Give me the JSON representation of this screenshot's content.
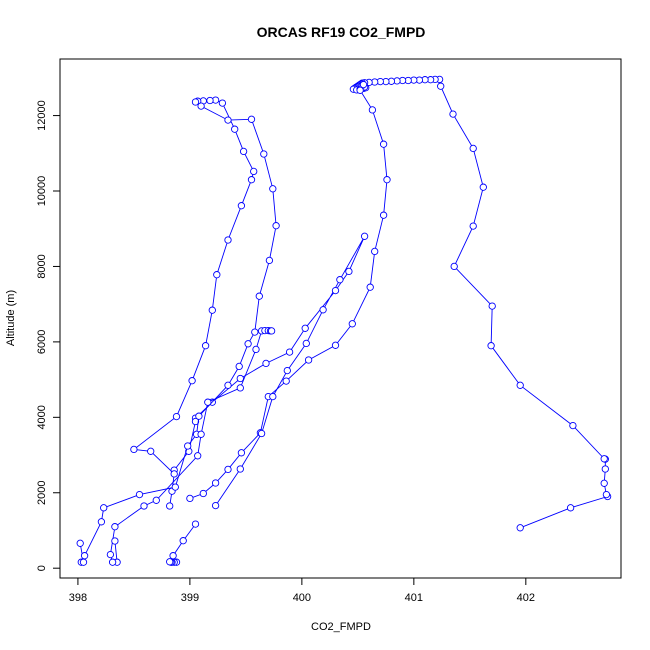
{
  "chart_data": {
    "type": "line",
    "title": "ORCAS RF19 CO2_FMPD",
    "xlabel": "CO2_FMPD",
    "ylabel": "Altitude (m)",
    "xlim": [
      397.84,
      402.85
    ],
    "ylim": [
      -260,
      13500
    ],
    "xticks": [
      398,
      399,
      400,
      401,
      402
    ],
    "yticks": [
      0,
      2000,
      4000,
      6000,
      8000,
      10000,
      12000
    ],
    "grid": false,
    "marker": "open-circle",
    "color": "#0000ff",
    "series": [
      {
        "points": [
          [
            401.95,
            1070
          ],
          [
            402.4,
            1600
          ],
          [
            402.73,
            1900
          ],
          [
            402.72,
            1950
          ],
          [
            402.7,
            2250
          ],
          [
            402.71,
            2630
          ],
          [
            402.71,
            2890
          ],
          [
            402.7,
            2900
          ],
          [
            402.42,
            3780
          ],
          [
            401.95,
            4850
          ],
          [
            401.69,
            5900
          ],
          [
            401.7,
            6950
          ],
          [
            401.36,
            8000
          ],
          [
            401.53,
            9070
          ],
          [
            401.62,
            10100
          ],
          [
            401.53,
            11130
          ],
          [
            401.35,
            12040
          ],
          [
            401.24,
            12780
          ],
          [
            401.23,
            12960
          ],
          [
            401.19,
            12960
          ],
          [
            401.15,
            12950
          ],
          [
            401.1,
            12950
          ],
          [
            401.05,
            12940
          ],
          [
            401.0,
            12940
          ],
          [
            400.95,
            12930
          ],
          [
            400.9,
            12930
          ],
          [
            400.85,
            12920
          ],
          [
            400.8,
            12910
          ],
          [
            400.75,
            12900
          ],
          [
            400.7,
            12900
          ],
          [
            400.65,
            12890
          ],
          [
            400.6,
            12880
          ],
          [
            400.56,
            12870
          ],
          [
            400.54,
            12860
          ],
          [
            400.53,
            12840
          ],
          [
            400.52,
            12820
          ],
          [
            400.51,
            12800
          ],
          [
            400.5,
            12780
          ],
          [
            400.49,
            12760
          ],
          [
            400.48,
            12740
          ],
          [
            400.47,
            12720
          ],
          [
            400.46,
            12700
          ],
          [
            400.49,
            12680
          ],
          [
            400.52,
            12700
          ],
          [
            400.55,
            12720
          ],
          [
            400.57,
            12740
          ],
          [
            400.56,
            12760
          ],
          [
            400.54,
            12800
          ],
          [
            400.55,
            12820
          ],
          [
            400.52,
            12670
          ],
          [
            400.63,
            12150
          ],
          [
            400.73,
            11240
          ],
          [
            400.76,
            10300
          ],
          [
            400.73,
            9360
          ],
          [
            400.65,
            8400
          ],
          [
            400.61,
            7450
          ],
          [
            400.45,
            6480
          ],
          [
            400.3,
            5910
          ],
          [
            400.06,
            5520
          ],
          [
            399.86,
            4960
          ],
          [
            399.7,
            4550
          ],
          [
            399.63,
            3590
          ],
          [
            399.46,
            3060
          ],
          [
            399.34,
            2620
          ],
          [
            399.23,
            2260
          ],
          [
            399.12,
            1980
          ],
          [
            399.0,
            1850
          ]
        ]
      },
      {
        "points": [
          [
            399.05,
            1170
          ],
          [
            398.94,
            730
          ],
          [
            398.85,
            330
          ],
          [
            398.88,
            160
          ],
          [
            398.86,
            160
          ],
          [
            398.84,
            160
          ],
          [
            398.83,
            160
          ],
          [
            398.82,
            170
          ]
        ]
      },
      {
        "points": [
          [
            399.23,
            1660
          ],
          [
            399.45,
            2630
          ],
          [
            399.64,
            3570
          ],
          [
            399.74,
            4550
          ],
          [
            399.87,
            5240
          ],
          [
            400.04,
            5960
          ],
          [
            400.19,
            6850
          ],
          [
            400.34,
            7650
          ],
          [
            400.56,
            8800
          ],
          [
            400.42,
            7870
          ],
          [
            400.3,
            7360
          ],
          [
            400.03,
            6360
          ],
          [
            399.89,
            5730
          ],
          [
            399.68,
            5430
          ],
          [
            399.45,
            5030
          ],
          [
            399.2,
            4400
          ],
          [
            399.05,
            3980
          ],
          [
            399.05,
            3890
          ],
          [
            398.99,
            3100
          ],
          [
            398.86,
            2600
          ]
        ]
      },
      {
        "points": [
          [
            398.82,
            1650
          ],
          [
            398.84,
            2040
          ],
          [
            398.86,
            2500
          ],
          [
            398.65,
            3100
          ],
          [
            398.5,
            3150
          ],
          [
            398.88,
            4020
          ],
          [
            399.02,
            4970
          ],
          [
            399.14,
            5900
          ],
          [
            399.2,
            6840
          ],
          [
            399.24,
            7780
          ],
          [
            399.34,
            8700
          ],
          [
            399.46,
            9610
          ],
          [
            399.55,
            10300
          ],
          [
            399.57,
            10520
          ],
          [
            399.48,
            11050
          ],
          [
            399.4,
            11640
          ],
          [
            399.29,
            12330
          ],
          [
            399.23,
            12410
          ],
          [
            399.18,
            12400
          ],
          [
            399.12,
            12390
          ],
          [
            399.07,
            12380
          ],
          [
            399.05,
            12360
          ],
          [
            399.1,
            12250
          ],
          [
            399.34,
            11880
          ],
          [
            399.55,
            11900
          ],
          [
            399.66,
            10980
          ],
          [
            399.74,
            10060
          ],
          [
            399.77,
            9080
          ],
          [
            399.71,
            8160
          ],
          [
            399.62,
            7210
          ],
          [
            399.58,
            6260
          ],
          [
            399.52,
            5950
          ],
          [
            399.44,
            5350
          ],
          [
            399.34,
            4850
          ],
          [
            399.08,
            4030
          ],
          [
            399.06,
            3550
          ],
          [
            398.98,
            3240
          ],
          [
            398.87,
            2150
          ],
          [
            398.55,
            1950
          ],
          [
            398.23,
            1600
          ],
          [
            398.21,
            1230
          ],
          [
            398.06,
            330
          ],
          [
            398.03,
            160
          ],
          [
            398.05,
            160
          ],
          [
            398.02,
            660
          ]
        ]
      },
      {
        "points": [
          [
            398.33,
            720
          ],
          [
            398.35,
            160
          ],
          [
            398.31,
            160
          ],
          [
            398.29,
            360
          ],
          [
            398.33,
            1100
          ],
          [
            398.59,
            1650
          ],
          [
            398.7,
            1800
          ],
          [
            399.07,
            2980
          ],
          [
            399.1,
            3550
          ],
          [
            399.16,
            4400
          ],
          [
            399.45,
            4780
          ],
          [
            399.59,
            5800
          ],
          [
            399.64,
            6290
          ],
          [
            399.67,
            6300
          ],
          [
            399.7,
            6300
          ],
          [
            399.72,
            6290
          ],
          [
            399.73,
            6290
          ]
        ]
      }
    ]
  }
}
